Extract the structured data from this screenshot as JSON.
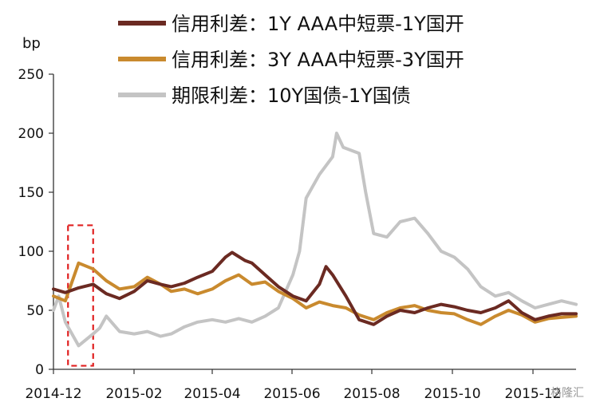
{
  "chart_data": {
    "type": "line",
    "title": "",
    "xlabel": "",
    "ylabel": "bp",
    "ylim": [
      0,
      250
    ],
    "yticks": [
      0,
      50,
      100,
      150,
      200,
      250
    ],
    "xtick_labels": [
      "2014-12",
      "2015-02",
      "2015-04",
      "2015-06",
      "2015-08",
      "2015-10",
      "2015-12"
    ],
    "grid": false,
    "legend_position": "top",
    "highlight_box": {
      "x_start": "2014-12-12",
      "x_end": "2014-12-31",
      "y_start": 3,
      "y_end": 122,
      "color": "#e02020",
      "style": "dashed"
    },
    "series": [
      {
        "name": "信用利差：1Y AAA中短票-1Y国开",
        "color": "#6b2a22",
        "points": [
          [
            "2014-12-01",
            68
          ],
          [
            "2014-12-10",
            65
          ],
          [
            "2014-12-20",
            69
          ],
          [
            "2014-12-31",
            72
          ],
          [
            "2015-01-10",
            64
          ],
          [
            "2015-01-20",
            60
          ],
          [
            "2015-01-31",
            66
          ],
          [
            "2015-02-10",
            75
          ],
          [
            "2015-02-20",
            72
          ],
          [
            "2015-02-28",
            70
          ],
          [
            "2015-03-10",
            73
          ],
          [
            "2015-03-20",
            78
          ],
          [
            "2015-03-31",
            83
          ],
          [
            "2015-04-10",
            95
          ],
          [
            "2015-04-15",
            99
          ],
          [
            "2015-04-25",
            92
          ],
          [
            "2015-04-30",
            90
          ],
          [
            "2015-05-10",
            80
          ],
          [
            "2015-05-20",
            70
          ],
          [
            "2015-05-31",
            62
          ],
          [
            "2015-06-10",
            58
          ],
          [
            "2015-06-20",
            72
          ],
          [
            "2015-06-25",
            87
          ],
          [
            "2015-06-30",
            80
          ],
          [
            "2015-07-10",
            62
          ],
          [
            "2015-07-20",
            42
          ],
          [
            "2015-07-31",
            38
          ],
          [
            "2015-08-10",
            45
          ],
          [
            "2015-08-20",
            50
          ],
          [
            "2015-08-31",
            48
          ],
          [
            "2015-09-10",
            52
          ],
          [
            "2015-09-20",
            55
          ],
          [
            "2015-09-30",
            53
          ],
          [
            "2015-10-10",
            50
          ],
          [
            "2015-10-20",
            48
          ],
          [
            "2015-10-31",
            52
          ],
          [
            "2015-11-10",
            58
          ],
          [
            "2015-11-20",
            48
          ],
          [
            "2015-11-30",
            42
          ],
          [
            "2015-12-10",
            45
          ],
          [
            "2015-12-20",
            47
          ],
          [
            "2015-12-31",
            47
          ]
        ]
      },
      {
        "name": "信用利差：3Y AAA中短票-3Y国开",
        "color": "#c98a2e",
        "points": [
          [
            "2014-12-01",
            62
          ],
          [
            "2014-12-10",
            58
          ],
          [
            "2014-12-20",
            90
          ],
          [
            "2014-12-31",
            85
          ],
          [
            "2015-01-10",
            75
          ],
          [
            "2015-01-20",
            68
          ],
          [
            "2015-01-31",
            70
          ],
          [
            "2015-02-10",
            78
          ],
          [
            "2015-02-20",
            72
          ],
          [
            "2015-02-28",
            66
          ],
          [
            "2015-03-10",
            68
          ],
          [
            "2015-03-20",
            64
          ],
          [
            "2015-03-31",
            68
          ],
          [
            "2015-04-10",
            75
          ],
          [
            "2015-04-20",
            80
          ],
          [
            "2015-04-30",
            72
          ],
          [
            "2015-05-10",
            74
          ],
          [
            "2015-05-20",
            66
          ],
          [
            "2015-05-31",
            60
          ],
          [
            "2015-06-10",
            52
          ],
          [
            "2015-06-20",
            57
          ],
          [
            "2015-06-30",
            54
          ],
          [
            "2015-07-10",
            52
          ],
          [
            "2015-07-20",
            46
          ],
          [
            "2015-07-31",
            42
          ],
          [
            "2015-08-10",
            48
          ],
          [
            "2015-08-20",
            52
          ],
          [
            "2015-08-31",
            54
          ],
          [
            "2015-09-10",
            50
          ],
          [
            "2015-09-20",
            48
          ],
          [
            "2015-09-30",
            47
          ],
          [
            "2015-10-10",
            42
          ],
          [
            "2015-10-20",
            38
          ],
          [
            "2015-10-31",
            45
          ],
          [
            "2015-11-10",
            50
          ],
          [
            "2015-11-20",
            46
          ],
          [
            "2015-11-30",
            40
          ],
          [
            "2015-12-10",
            43
          ],
          [
            "2015-12-20",
            44
          ],
          [
            "2015-12-31",
            45
          ]
        ]
      },
      {
        "name": "期限利差：10Y国债-1Y国债",
        "color": "#c4c4c4",
        "points": [
          [
            "2014-12-01",
            50
          ],
          [
            "2014-12-05",
            62
          ],
          [
            "2014-12-10",
            40
          ],
          [
            "2014-12-20",
            20
          ],
          [
            "2014-12-31",
            30
          ],
          [
            "2015-01-05",
            35
          ],
          [
            "2015-01-10",
            45
          ],
          [
            "2015-01-20",
            32
          ],
          [
            "2015-01-31",
            30
          ],
          [
            "2015-02-10",
            32
          ],
          [
            "2015-02-20",
            28
          ],
          [
            "2015-02-28",
            30
          ],
          [
            "2015-03-10",
            36
          ],
          [
            "2015-03-20",
            40
          ],
          [
            "2015-03-31",
            42
          ],
          [
            "2015-04-10",
            40
          ],
          [
            "2015-04-20",
            43
          ],
          [
            "2015-04-30",
            40
          ],
          [
            "2015-05-10",
            45
          ],
          [
            "2015-05-20",
            52
          ],
          [
            "2015-05-31",
            80
          ],
          [
            "2015-06-05",
            100
          ],
          [
            "2015-06-10",
            145
          ],
          [
            "2015-06-20",
            165
          ],
          [
            "2015-06-30",
            180
          ],
          [
            "2015-07-03",
            200
          ],
          [
            "2015-07-08",
            188
          ],
          [
            "2015-07-20",
            183
          ],
          [
            "2015-07-25",
            150
          ],
          [
            "2015-07-31",
            115
          ],
          [
            "2015-08-10",
            112
          ],
          [
            "2015-08-20",
            125
          ],
          [
            "2015-08-31",
            128
          ],
          [
            "2015-09-10",
            115
          ],
          [
            "2015-09-20",
            100
          ],
          [
            "2015-09-30",
            95
          ],
          [
            "2015-10-10",
            85
          ],
          [
            "2015-10-20",
            70
          ],
          [
            "2015-10-31",
            62
          ],
          [
            "2015-11-10",
            65
          ],
          [
            "2015-11-20",
            58
          ],
          [
            "2015-11-30",
            52
          ],
          [
            "2015-12-10",
            55
          ],
          [
            "2015-12-20",
            58
          ],
          [
            "2015-12-31",
            55
          ]
        ]
      }
    ]
  },
  "watermark": "格隆汇"
}
